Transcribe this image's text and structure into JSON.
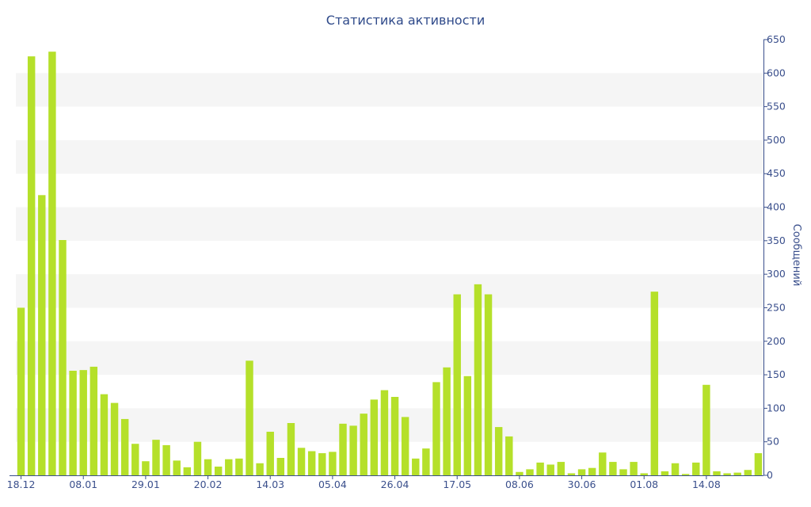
{
  "chart_data": {
    "type": "bar",
    "title": "Статистика активности",
    "ylabel": "Сообщений",
    "xlabel": "",
    "ylim": [
      0,
      650
    ],
    "y_ticks": [
      0,
      50,
      100,
      150,
      200,
      250,
      300,
      350,
      400,
      450,
      500,
      550,
      600,
      650
    ],
    "y_axis_side": "right",
    "grid": "alternating horizontal bands",
    "bar_color": "#b5e02a",
    "band_color": "#f5f5f5",
    "axis_color": "#3a4f8c",
    "title_color": "#2f4a8a",
    "x_tick_labels": [
      {
        "label": "18.12",
        "index": 0
      },
      {
        "label": "08.01",
        "index": 6
      },
      {
        "label": "29.01",
        "index": 12
      },
      {
        "label": "20.02",
        "index": 18
      },
      {
        "label": "14.03",
        "index": 24
      },
      {
        "label": "05.04",
        "index": 30
      },
      {
        "label": "26.04",
        "index": 36
      },
      {
        "label": "17.05",
        "index": 42
      },
      {
        "label": "08.06",
        "index": 48
      },
      {
        "label": "30.06",
        "index": 54
      },
      {
        "label": "01.08",
        "index": 60
      },
      {
        "label": "14.08",
        "index": 66
      }
    ],
    "values": [
      250,
      625,
      418,
      632,
      351,
      156,
      157,
      162,
      121,
      108,
      84,
      47,
      21,
      53,
      45,
      22,
      12,
      50,
      24,
      13,
      24,
      25,
      171,
      18,
      65,
      26,
      78,
      41,
      36,
      33,
      35,
      77,
      74,
      92,
      113,
      127,
      117,
      87,
      25,
      40,
      139,
      161,
      270,
      148,
      285,
      270,
      72,
      58,
      5,
      9,
      19,
      16,
      20,
      3,
      9,
      11,
      34,
      20,
      9,
      20,
      3,
      274,
      6,
      18,
      2,
      19,
      135,
      6,
      3,
      4,
      8,
      33
    ]
  }
}
